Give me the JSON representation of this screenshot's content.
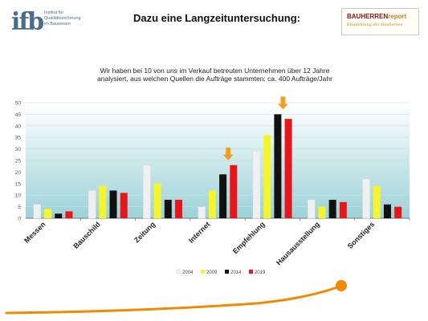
{
  "logo": {
    "mark": "ifb",
    "lines": [
      "Institut für",
      "Qualitätssicherung",
      "im Bauwesen"
    ]
  },
  "title": "Dazu eine Langzeituntersuchung:",
  "report_logo": {
    "brand_main": "BAUHERREN",
    "brand_accent": "report",
    "tagline": "Empfehlung der Bauherren"
  },
  "intro_lines": [
    "Wir haben bei 10 von uns im Verkauf  betreuten Unternehmen über 12 Jahre",
    "analysiert, aus welchen Quellen die Aufträge stammten: ca. 400 Aufträge/Jahr"
  ],
  "colors": {
    "series_2004": "#f0f0f0",
    "series_2009": "#f5f52a",
    "series_2014": "#111111",
    "series_2019": "#e8161a",
    "arrow": "#f0a020",
    "swoosh": "#f08a00",
    "plot_band_top": "#ffffff",
    "plot_band_bottom": "#9bd2d8"
  },
  "chart_data": {
    "type": "bar",
    "categories": [
      "Messen",
      "Bauschild",
      "Zeitung",
      "Internet",
      "Empfehlung",
      "Hausausstellung",
      "Sonstiges"
    ],
    "series": [
      {
        "name": "2004",
        "values": [
          6,
          12,
          23,
          5,
          29,
          8,
          17
        ]
      },
      {
        "name": "2009",
        "values": [
          4,
          14,
          15,
          12,
          36,
          5,
          14
        ]
      },
      {
        "name": "2014",
        "values": [
          2,
          12,
          8,
          19,
          45,
          8,
          6
        ]
      },
      {
        "name": "2019",
        "values": [
          3,
          11,
          8,
          23,
          43,
          7,
          5
        ]
      }
    ],
    "ylim": [
      0,
      50
    ],
    "yticks": [
      0,
      5,
      10,
      15,
      20,
      25,
      30,
      35,
      40,
      45,
      50
    ],
    "grid": true,
    "legend": "bottom",
    "highlight_categories": [
      "Internet",
      "Empfehlung"
    ],
    "xlabel": "",
    "ylabel": ""
  }
}
